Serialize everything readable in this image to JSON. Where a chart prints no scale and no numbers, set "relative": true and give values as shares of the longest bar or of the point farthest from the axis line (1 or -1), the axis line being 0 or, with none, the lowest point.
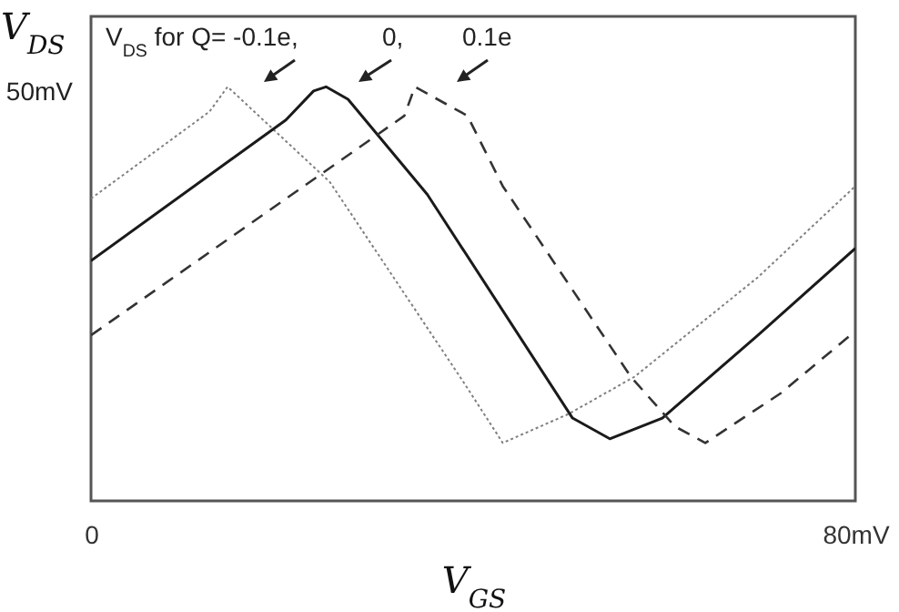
{
  "chart_data": {
    "type": "line",
    "xlabel": "V$_{GS}$",
    "ylabel": "V$_{DS}$",
    "annotations": [
      "V$_{DS}$ for Q= -0.1e,",
      "0,",
      "0.1e",
      "50mV"
    ],
    "xlim": [
      0,
      80
    ],
    "xticks": [
      {
        "value": 0,
        "label": "0"
      },
      {
        "value": 80,
        "label": "80mV"
      }
    ],
    "relative": true,
    "grid": false,
    "marker": "none",
    "series": [
      {
        "color": "#808080",
        "line_style": "dotted",
        "x": [
          0,
          12.4,
          14.3,
          25.0,
          38.9,
          43.1,
          50.0,
          56.9,
          69.8,
          80
        ],
        "values": [
          0.73,
          0.94,
          1.0,
          0.77,
          0.29,
          0.14,
          0.21,
          0.3,
          0.54,
          0.76
        ]
      },
      {
        "color": "#1a1a1a",
        "line_style": "solid",
        "x": [
          0,
          20.4,
          23.3,
          24.6,
          26.9,
          35.2,
          50.4,
          54.3,
          59.8,
          69.8,
          80
        ],
        "values": [
          0.58,
          0.92,
          0.99,
          1.0,
          0.97,
          0.74,
          0.2,
          0.15,
          0.2,
          0.4,
          0.61
        ]
      },
      {
        "color": "#333333",
        "line_style": "dashed",
        "x": [
          0,
          32.8,
          33.9,
          39.4,
          43.1,
          56.5,
          61.1,
          64.3,
          72.2,
          80
        ],
        "values": [
          0.4,
          0.93,
          1.0,
          0.93,
          0.76,
          0.3,
          0.18,
          0.14,
          0.26,
          0.41
        ]
      }
    ]
  }
}
